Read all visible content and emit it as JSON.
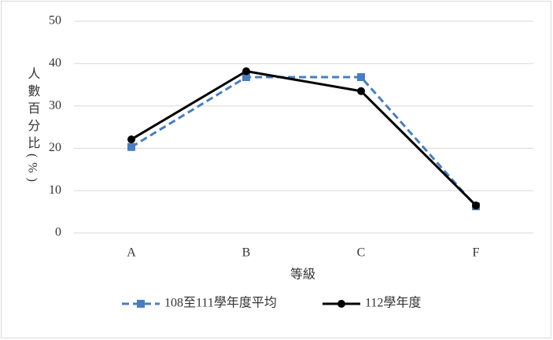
{
  "chart_data": {
    "type": "line",
    "x_label": "等級",
    "y_label": "人數百分比(%)",
    "categories": [
      "A",
      "B",
      "C",
      "F"
    ],
    "series": [
      {
        "name": "108至111學年度平均",
        "color": "#4a7ebb",
        "dashed": true,
        "marker": "square",
        "values": [
          20.3,
          36.8,
          36.8,
          6.3
        ]
      },
      {
        "name": "112學年度",
        "color": "#000000",
        "dashed": false,
        "marker": "circle",
        "values": [
          22.1,
          38.2,
          33.5,
          6.5
        ]
      }
    ],
    "ylim": [
      0,
      50
    ],
    "yticks": [
      0,
      10,
      20,
      30,
      40,
      50
    ],
    "grid": true,
    "legend": "bottom"
  }
}
